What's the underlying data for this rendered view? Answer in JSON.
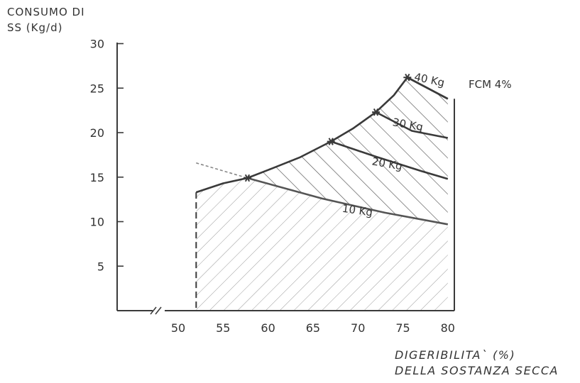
{
  "chart_data": {
    "type": "area",
    "ylabel_line1": "CONSUMO DI",
    "ylabel_line2": "SS (Kg/d)",
    "xlabel_line1": "DIGERIBILITA` (%)",
    "xlabel_line2": "DELLA SOSTANZA SECCA",
    "legend_title": "FCM 4%",
    "xlim": [
      46,
      80
    ],
    "ylim": [
      0,
      30
    ],
    "x_ticks": [
      50,
      55,
      60,
      65,
      70,
      75,
      80
    ],
    "y_ticks": [
      5,
      10,
      15,
      20,
      25,
      30
    ],
    "axis_break": true,
    "upper_boundary": [
      {
        "x": 52,
        "y": 13.3
      },
      {
        "x": 55,
        "y": 14.3
      },
      {
        "x": 57.7,
        "y": 14.9
      },
      {
        "x": 60,
        "y": 15.8
      },
      {
        "x": 63.5,
        "y": 17.2
      },
      {
        "x": 67,
        "y": 19.0
      },
      {
        "x": 69.5,
        "y": 20.5
      },
      {
        "x": 72,
        "y": 22.3
      },
      {
        "x": 74,
        "y": 24.2
      },
      {
        "x": 75.5,
        "y": 26.2
      },
      {
        "x": 80,
        "y": 23.8
      }
    ],
    "extrapolation": [
      {
        "x": 52,
        "y": 16.6
      },
      {
        "x": 57.7,
        "y": 14.9
      }
    ],
    "series": [
      {
        "name": "40 Kg",
        "values": [
          {
            "x": 75.5,
            "y": 26.2
          },
          {
            "x": 80,
            "y": 23.8
          }
        ]
      },
      {
        "name": "30 Kg",
        "values": [
          {
            "x": 72,
            "y": 22.3
          },
          {
            "x": 76,
            "y": 20.2
          },
          {
            "x": 80,
            "y": 19.4
          }
        ]
      },
      {
        "name": "20 Kg",
        "values": [
          {
            "x": 67,
            "y": 19.0
          },
          {
            "x": 72,
            "y": 17.3
          },
          {
            "x": 77,
            "y": 15.7
          },
          {
            "x": 80,
            "y": 14.8
          }
        ]
      },
      {
        "name": "10 Kg",
        "values": [
          {
            "x": 57.7,
            "y": 14.9
          },
          {
            "x": 66,
            "y": 12.6
          },
          {
            "x": 73,
            "y": 11.0
          },
          {
            "x": 80,
            "y": 9.7
          }
        ]
      }
    ],
    "markers": [
      {
        "x": 57.7,
        "y": 14.9
      },
      {
        "x": 67,
        "y": 19.0
      },
      {
        "x": 72,
        "y": 22.3
      },
      {
        "x": 75.5,
        "y": 26.2
      }
    ],
    "colors": {
      "line": "#3a3a3a",
      "hatch_light": "#8a8a8a",
      "hatch_dark": "#555555"
    }
  }
}
